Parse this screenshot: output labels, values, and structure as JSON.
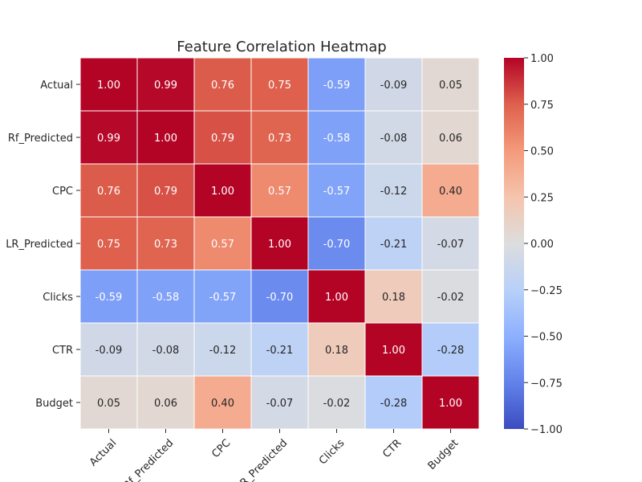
{
  "chart_data": {
    "type": "heatmap",
    "title": "Feature Correlation Heatmap",
    "rows": [
      "Actual",
      "Rf_Predicted",
      "CPC",
      "LR_Predicted",
      "Clicks",
      "CTR",
      "Budget"
    ],
    "columns": [
      "Actual",
      "Rf_Predicted",
      "CPC",
      "LR_Predicted",
      "Clicks",
      "CTR",
      "Budget"
    ],
    "values": [
      [
        1.0,
        0.99,
        0.76,
        0.75,
        -0.59,
        -0.09,
        0.05
      ],
      [
        0.99,
        1.0,
        0.79,
        0.73,
        -0.58,
        -0.08,
        0.06
      ],
      [
        0.76,
        0.79,
        1.0,
        0.57,
        -0.57,
        -0.12,
        0.4
      ],
      [
        0.75,
        0.73,
        0.57,
        1.0,
        -0.7,
        -0.21,
        -0.07
      ],
      [
        -0.59,
        -0.58,
        -0.57,
        -0.7,
        1.0,
        0.18,
        -0.02
      ],
      [
        -0.09,
        -0.08,
        -0.12,
        -0.21,
        0.18,
        1.0,
        -0.28
      ],
      [
        0.05,
        0.06,
        0.4,
        -0.07,
        -0.02,
        -0.28,
        1.0
      ]
    ],
    "colormap": "coolwarm",
    "vmin": -1.0,
    "vmax": 1.0,
    "colorbar_ticks": [
      "1.00",
      "0.75",
      "0.50",
      "0.25",
      "0.00",
      "−0.25",
      "−0.50",
      "−0.75",
      "−1.00"
    ],
    "colorbar_tick_values": [
      1.0,
      0.75,
      0.5,
      0.25,
      0.0,
      -0.25,
      -0.5,
      -0.75,
      -1.0
    ],
    "annotations": true,
    "cell_borders": "#ffffff"
  }
}
